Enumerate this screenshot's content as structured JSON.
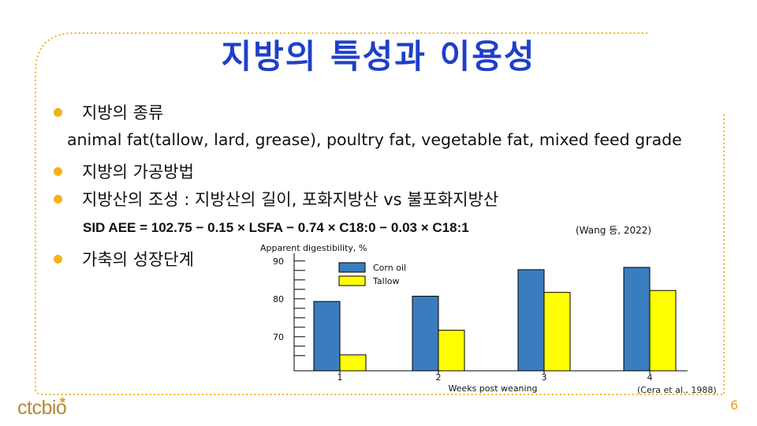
{
  "title": "지방의 특성과 이용성",
  "bullets": {
    "b1": "지방의 종류",
    "b1_detail": "animal fat(tallow, lard, grease), poultry fat, vegetable fat, mixed feed grade",
    "b2": "지방의 가공방법",
    "b3": "지방산의 조성 : 지방산의 길이, 포화지방산 vs 불포화지방산",
    "formula": "SID AEE = 102.75 − 0.15 × LSFA − 0.74 × C18:0 − 0.03 × C18:1",
    "formula_ref": "(Wang 등, 2022)",
    "b4": "가축의 성장단계"
  },
  "chart_data": {
    "type": "bar",
    "ylabel": "Apparent digestibility, %",
    "xlabel": "Weeks post weaning",
    "categories": [
      "1",
      "2",
      "3",
      "4"
    ],
    "series": [
      {
        "name": "Corn oil",
        "values": [
          79.3,
          80.7,
          87.7,
          88.3
        ],
        "color": "#3a7dbf"
      },
      {
        "name": "Tallow",
        "values": [
          65.2,
          71.7,
          81.7,
          82.2
        ],
        "color": "#ffff00"
      }
    ],
    "ylim": [
      61,
      92
    ],
    "yticks": [
      70,
      80,
      90
    ],
    "legend_position": "top-left",
    "source": "(Cera et al., 1988)"
  },
  "colors": {
    "title": "#1f3fc8",
    "bullet": "#f2b21a",
    "border_dots": "#f2b21a",
    "logo": "#b08a3a"
  },
  "footer": {
    "page_number": "6",
    "logo_text": "ctcbio"
  }
}
